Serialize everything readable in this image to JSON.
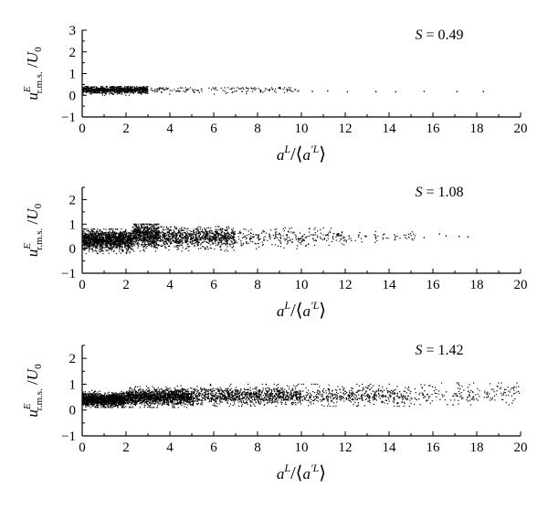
{
  "colors": {
    "background": "#ffffff",
    "points": "#000000",
    "axes": "#000000"
  },
  "chart_data": [
    {
      "type": "scatter",
      "annotation": "S = 0.49",
      "xlabel": "a^L/⟨a'^L⟩",
      "ylabel": "u^E_r.m.s./U_0",
      "xlim": [
        0,
        20
      ],
      "ylim": [
        -1,
        3
      ],
      "xticks": [
        "0",
        "2",
        "4",
        "6",
        "8",
        "10",
        "12",
        "14",
        "16",
        "18",
        "20"
      ],
      "yticks": [
        "−1",
        "0",
        "1",
        "2",
        "3"
      ],
      "grid": false,
      "clouds": [
        {
          "x": [
            0,
            3
          ],
          "y": [
            0.0,
            0.4
          ],
          "center": [
            0.1,
            0.25
          ],
          "spread": [
            0.05,
            0.08
          ],
          "n": 900,
          "note": "dense core"
        },
        {
          "x": [
            3,
            10
          ],
          "y": [
            0.05,
            0.35
          ],
          "center": [
            0.15,
            0.25
          ],
          "spread": [
            0.05,
            0.08
          ],
          "n": 160
        }
      ],
      "sparse_points": [
        [
          10.5,
          0.18
        ],
        [
          11.2,
          0.2
        ],
        [
          12.1,
          0.16
        ],
        [
          13.4,
          0.17
        ],
        [
          14.3,
          0.16
        ],
        [
          15.6,
          0.18
        ],
        [
          17.1,
          0.17
        ],
        [
          18.3,
          0.17
        ]
      ]
    },
    {
      "type": "scatter",
      "annotation": "S = 1.08",
      "xlabel": "a^L/⟨a'^L⟩",
      "ylabel": "u^E_r.m.s./U_0",
      "xlim": [
        0,
        20
      ],
      "ylim": [
        -1,
        2.5
      ],
      "xticks": [
        "0",
        "2",
        "4",
        "6",
        "8",
        "10",
        "12",
        "14",
        "16",
        "18",
        "20"
      ],
      "yticks": [
        "−1",
        "0",
        "1",
        "2"
      ],
      "grid": false,
      "clouds": [
        {
          "x": [
            0,
            2.3
          ],
          "y": [
            -0.2,
            0.8
          ],
          "center": [
            0.1,
            0.35
          ],
          "spread": [
            0.2,
            0.2
          ],
          "n": 1400
        },
        {
          "x": [
            2.3,
            3.5
          ],
          "y": [
            -0.1,
            1.0
          ],
          "center": [
            0.1,
            0.55
          ],
          "spread": [
            0.2,
            0.25
          ],
          "n": 700,
          "note": "hump near x=3"
        },
        {
          "x": [
            3.5,
            7
          ],
          "y": [
            -0.1,
            0.9
          ],
          "center": [
            0.15,
            0.45
          ],
          "spread": [
            0.2,
            0.2
          ],
          "n": 900
        },
        {
          "x": [
            7,
            12
          ],
          "y": [
            0.0,
            0.85
          ],
          "center": [
            0.2,
            0.45
          ],
          "spread": [
            0.15,
            0.18
          ],
          "n": 260
        },
        {
          "x": [
            12,
            15.2
          ],
          "y": [
            0.1,
            0.7
          ],
          "center": [
            0.25,
            0.45
          ],
          "spread": [
            0.12,
            0.12
          ],
          "n": 55
        }
      ],
      "sparse_points": [
        [
          15.6,
          0.45
        ],
        [
          16.3,
          0.6
        ],
        [
          16.6,
          0.52
        ],
        [
          17.2,
          0.5
        ],
        [
          17.6,
          0.48
        ]
      ]
    },
    {
      "type": "scatter",
      "annotation": "S = 1.42",
      "xlabel": "a^L/⟨a'^L⟩",
      "ylabel": "u^E_r.m.s./U_0",
      "xlim": [
        0,
        20
      ],
      "ylim": [
        -1,
        2.5
      ],
      "xticks": [
        "0",
        "2",
        "4",
        "6",
        "8",
        "10",
        "12",
        "14",
        "16",
        "18",
        "20"
      ],
      "yticks": [
        "−1",
        "0",
        "1",
        "2"
      ],
      "grid": false,
      "clouds": [
        {
          "x": [
            0,
            2
          ],
          "y": [
            0.1,
            0.8
          ],
          "center": [
            0.2,
            0.4
          ],
          "spread": [
            0.15,
            0.12
          ],
          "n": 1500
        },
        {
          "x": [
            2,
            5
          ],
          "y": [
            0.1,
            0.95
          ],
          "center": [
            0.3,
            0.5
          ],
          "spread": [
            0.15,
            0.15
          ],
          "n": 1400
        },
        {
          "x": [
            5,
            10
          ],
          "y": [
            0.15,
            1.0
          ],
          "center": [
            0.45,
            0.55
          ],
          "spread": [
            0.15,
            0.17
          ],
          "n": 1000
        },
        {
          "x": [
            10,
            15
          ],
          "y": [
            0.15,
            1.0
          ],
          "center": [
            0.55,
            0.55
          ],
          "spread": [
            0.15,
            0.18
          ],
          "n": 450
        },
        {
          "x": [
            15,
            20
          ],
          "y": [
            0.2,
            1.05
          ],
          "center": [
            0.65,
            0.6
          ],
          "spread": [
            0.15,
            0.2
          ],
          "n": 180
        }
      ],
      "sparse_points": []
    }
  ]
}
